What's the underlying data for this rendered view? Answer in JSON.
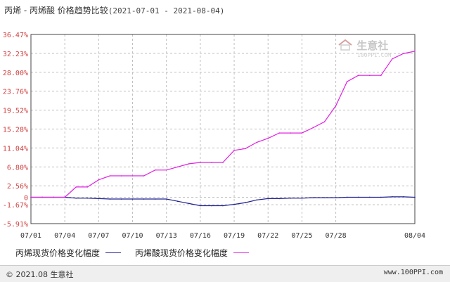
{
  "title": {
    "main": "丙烯 - 丙烯酸 价格趋势比较",
    "range": "(2021-07-01 - 2021-08-04)"
  },
  "watermark": {
    "brand": "生意社",
    "site": "100PPI.COM"
  },
  "footer": {
    "copyright": "© 2021.08 生意社",
    "url": "www.100PPI.com"
  },
  "colors": {
    "series1": "#1f1f8f",
    "series2": "#e020e0",
    "grid": "#bfbfbf",
    "axis": "#444444",
    "ytick": "#d04040",
    "xtick": "#333333"
  },
  "chart_data": {
    "type": "line",
    "grid": true,
    "legend_position": "bottom",
    "ylim": [
      -5.91,
      36.47
    ],
    "yticks": [
      36.47,
      32.23,
      28.0,
      23.76,
      19.52,
      15.28,
      11.04,
      6.8,
      2.56,
      0,
      -1.67,
      -5.91
    ],
    "ytick_labels": [
      "36.47%",
      "32.23%",
      "28.00%",
      "23.76%",
      "19.52%",
      "15.28%",
      "11.04%",
      "6.80%",
      "2.56%",
      "0",
      "-1.67%",
      "-5.91%"
    ],
    "xticks": [
      "07/01",
      "07/04",
      "07/07",
      "07/10",
      "07/13",
      "07/16",
      "07/19",
      "07/22",
      "07/25",
      "07/28",
      "08/04"
    ],
    "x": [
      "07/01",
      "07/02",
      "07/03",
      "07/04",
      "07/05",
      "07/06",
      "07/07",
      "07/08",
      "07/09",
      "07/10",
      "07/11",
      "07/12",
      "07/13",
      "07/14",
      "07/15",
      "07/16",
      "07/17",
      "07/18",
      "07/19",
      "07/20",
      "07/21",
      "07/22",
      "07/23",
      "07/24",
      "07/25",
      "07/26",
      "07/27",
      "07/28",
      "07/29",
      "07/30",
      "07/31",
      "08/01",
      "08/02",
      "08/03",
      "08/04"
    ],
    "series": [
      {
        "name": "丙烯现货价格变化幅度",
        "values": [
          0,
          0,
          0,
          0,
          -0.2,
          -0.2,
          -0.3,
          -0.4,
          -0.4,
          -0.4,
          -0.4,
          -0.4,
          -0.4,
          -0.9,
          -1.4,
          -1.9,
          -1.9,
          -1.9,
          -1.6,
          -1.2,
          -0.6,
          -0.3,
          -0.3,
          -0.2,
          -0.2,
          -0.1,
          -0.1,
          -0.1,
          0,
          0,
          0,
          0,
          0.1,
          0.1,
          0
        ]
      },
      {
        "name": "丙烯酸现货价格变化幅度",
        "values": [
          0,
          0,
          0,
          0,
          2.3,
          2.3,
          3.9,
          4.8,
          4.8,
          4.8,
          4.8,
          6.1,
          6.1,
          6.8,
          7.5,
          7.8,
          7.8,
          7.8,
          10.5,
          10.9,
          12.3,
          13.2,
          14.4,
          14.4,
          14.4,
          15.6,
          16.9,
          20.5,
          25.9,
          27.3,
          27.3,
          27.3,
          31.0,
          32.2,
          32.7
        ]
      }
    ]
  }
}
